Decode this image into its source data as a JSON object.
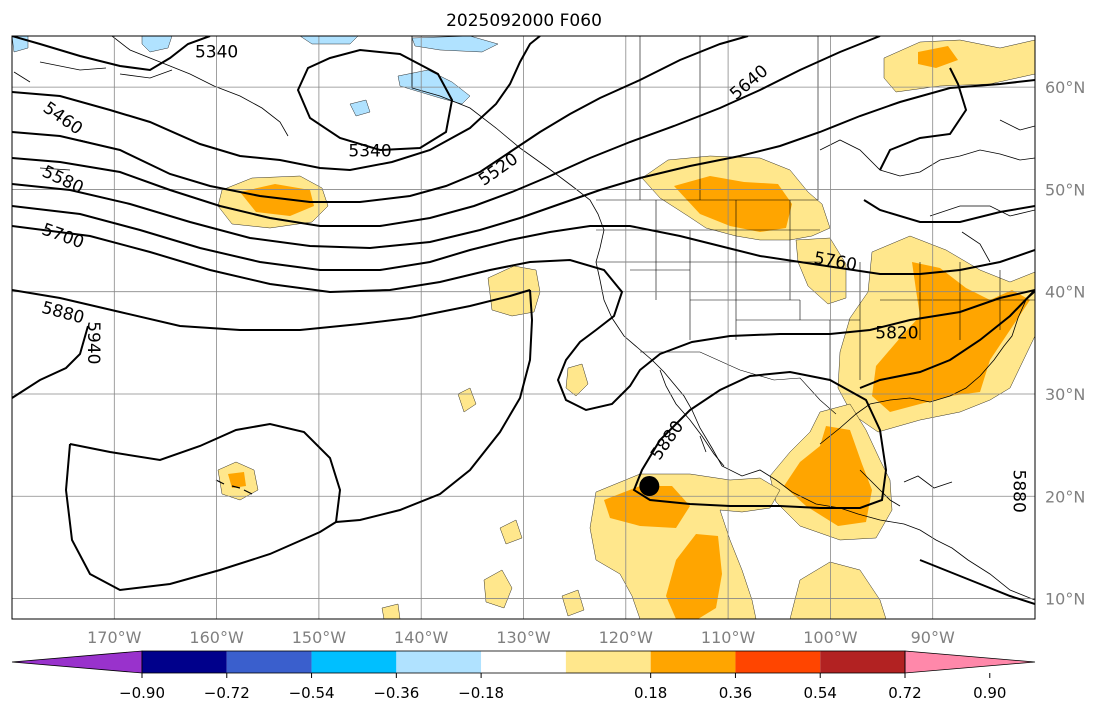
{
  "title": "2025092000 F060",
  "map": {
    "projection": "plate-carree",
    "lon_range": [
      -180,
      -80
    ],
    "lat_range": [
      8,
      65
    ],
    "lon_labels": [
      {
        "lon": -170,
        "text": "170°W"
      },
      {
        "lon": -160,
        "text": "160°W"
      },
      {
        "lon": -150,
        "text": "150°W"
      },
      {
        "lon": -140,
        "text": "140°W"
      },
      {
        "lon": -130,
        "text": "130°W"
      },
      {
        "lon": -120,
        "text": "120°W"
      },
      {
        "lon": -110,
        "text": "110°W"
      },
      {
        "lon": -100,
        "text": "100°W"
      },
      {
        "lon": -90,
        "text": "90°W"
      }
    ],
    "lat_labels": [
      {
        "lat": 60,
        "text": "60°N"
      },
      {
        "lat": 50,
        "text": "50°N"
      },
      {
        "lat": 40,
        "text": "40°N"
      },
      {
        "lat": 30,
        "text": "30°N"
      },
      {
        "lat": 20,
        "text": "20°N"
      },
      {
        "lat": 10,
        "text": "10°N"
      }
    ],
    "contour_labels": [
      {
        "text": "5340",
        "lon": -160,
        "lat": 63.5,
        "angle": 0
      },
      {
        "text": "5340",
        "lon": -145,
        "lat": 53.8,
        "angle": 0
      },
      {
        "text": "5460",
        "lon": -175,
        "lat": 57.0,
        "angle": 35
      },
      {
        "text": "5580",
        "lon": -175,
        "lat": 51.0,
        "angle": 25
      },
      {
        "text": "5700",
        "lon": -175,
        "lat": 45.5,
        "angle": 20
      },
      {
        "text": "5880",
        "lon": -175,
        "lat": 38.0,
        "angle": 15
      },
      {
        "text": "5940",
        "lon": -172,
        "lat": 35.0,
        "angle": 90
      },
      {
        "text": "5520",
        "lon": -132.5,
        "lat": 52.0,
        "angle": -35
      },
      {
        "text": "5640",
        "lon": -108,
        "lat": 60.5,
        "angle": -40
      },
      {
        "text": "5760",
        "lon": -99.5,
        "lat": 43.0,
        "angle": 10
      },
      {
        "text": "5820",
        "lon": -93.5,
        "lat": 36.0,
        "angle": 0
      },
      {
        "text": "5880",
        "lon": -116,
        "lat": 25.5,
        "angle": -55
      },
      {
        "text": "5880",
        "lon": -81.5,
        "lat": 20.5,
        "angle": 90
      }
    ],
    "storm_marker": {
      "lon": -117.7,
      "lat": 21.0
    }
  },
  "colorbar": {
    "ticks": [
      "−0.90",
      "−0.72",
      "−0.54",
      "−0.36",
      "−0.18",
      "0.18",
      "0.36",
      "0.54",
      "0.72",
      "0.90"
    ],
    "colors": [
      "#9932cc",
      "#00008b",
      "#3a5fcd",
      "#00bfff",
      "#b0e2ff",
      "#ffffff",
      "#ffe78c",
      "#ffa500",
      "#ff4500",
      "#b22222",
      "#ff88aa"
    ]
  }
}
